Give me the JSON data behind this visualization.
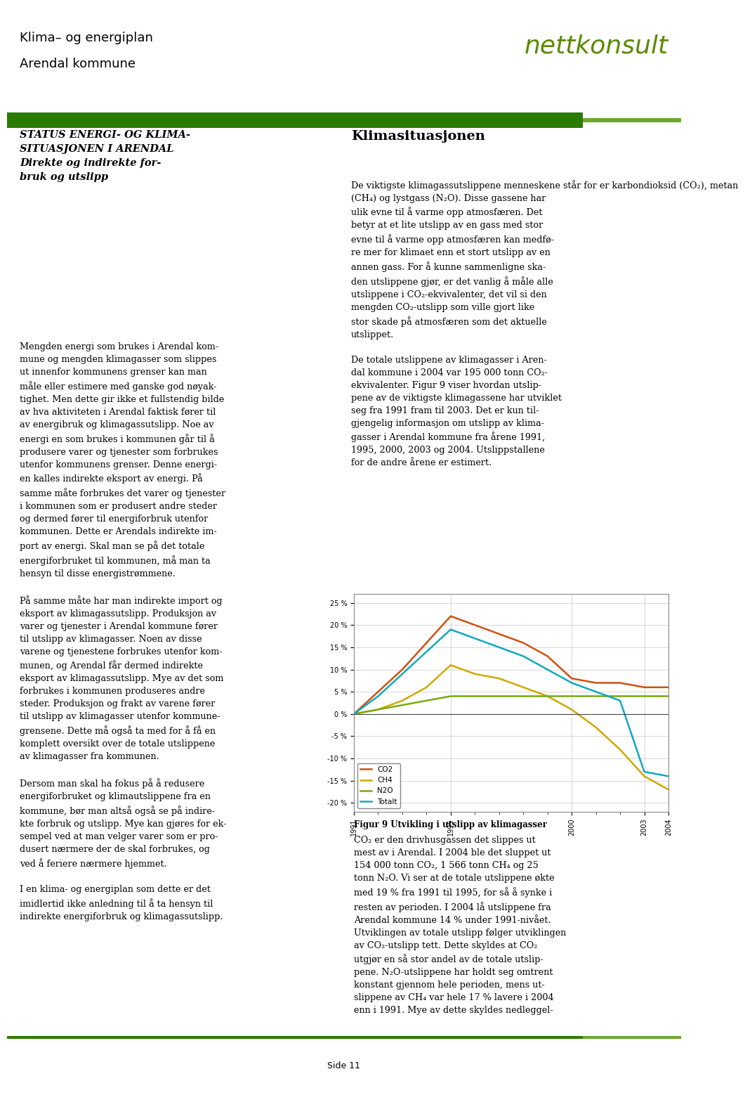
{
  "header_title_line1": "Klima– og energiplan",
  "header_title_line2": "Arendal kommune",
  "header_logo": "nettkonsult",
  "header_bar_dark": "#2a7a00",
  "header_bar_light": "#6aaa2a",
  "page_bg": "#ffffff",
  "left_heading": "STATUS ENERGI- OG KLIMA-\nSITUASJONEN I ARENDAL\nDirekte og indirekte for-\nbruk og utslipp",
  "left_body": "Mengden energi som brukes i Arendal kom-\nmune og mengden klimagasser som slippes\nut innenfor kommunens grenser kan man\nmåle eller estimere med ganske god nøyak-\ntighet. Men dette gir ikke et fullstendig bilde\nav hva aktiviteten i Arendal faktisk fører til\nav energibruk og klimagassutslipp. Noe av\nenergi en som brukes i kommunen går til å\nprodusere varer og tjenester som forbrukes\nutenfor kommunens grenser. Denne energi-\nen kalles indirekte eksport av energi. På\nsamme måte forbrukes det varer og tjenester\ni kommunen som er produsert andre steder\nog dermed fører til energiforbruk utenfor\nkommunen. Dette er Arendals indirekte im-\nport av energi. Skal man se på det totale\nenergiforbruket til kommunen, må man ta\nhensyn til disse energistrømmene.\n\nPå samme måte har man indirekte import og\neksport av klimagassutslipp. Produksjon av\nvarer og tjenester i Arendal kommune fører\ntil utslipp av klimagasser. Noen av disse\nvarene og tjenestene forbrukes utenfor kom-\nmunen, og Arendal får dermed indirekte\neksport av klimagassutslipp. Mye av det som\nforbrukes i kommunen produseres andre\nsteder. Produksjon og frakt av varene fører\ntil utslipp av klimagasser utenfor kommune-\ngrensene. Dette må også ta med for å få en\nkomplett oversikt over de totale utslippene\nav klimagasser fra kommunen.\n\nDersom man skal ha fokus på å redusere\nenergiforbruket og klimautslippene fra en\nkommune, bør man altså også se på indire-\nkte forbruk og utslipp. Mye kan gjøres for ek-\nsempel ved at man velger varer som er pro-\ndusert nærmere der de skal forbrukes, og\nved å feriere nærmere hjemmet.\n\nI en klima- og energiplan som dette er det\nimidlertid ikke anledning til å ta hensyn til\nindirekte energiforbruk og klimagassutslipp.",
  "right_heading": "Klimasituasjonen",
  "right_body1": "De viktigste klimagassutslippene menneskene står for er karbondioksid (CO₂), metan\n(CH₄) og lystgass (N₂O). Disse gassene har\nulik evne til å varme opp atmosfæren. Det\nbetyr at et lite utslipp av en gass med stor\nevne til å varme opp atmosfæren kan medfø-\nre mer for klimaet enn et stort utslipp av en\nannen gass. For å kunne sammenligne ska-\nden utslippene gjør, er det vanlig å måle alle\nutslippene i CO₂-ekvivalenter, det vil si den\nmengden CO₂-utslipp som ville gjort like\nstor skade på atmosfæren som det aktuelle\nutslippet.\n\nDe totale utslippene av klimagasser i Aren-\ndal kommune i 2004 var 195 000 tonn CO₂-\nekvivalenter. Figur 9 viser hvordan utslip-\npene av de viktigste klimagassene har utviklet\nseg fra 1991 fram til 2003. Det er kun til-\ngjengelig informasjon om utslipp av klima-\ngasser i Arendal kommune fra årene 1991,\n1995, 2000, 2003 og 2004. Utslippstallene\nfor de andre årene er estimert.",
  "chart_caption": "Figur 9 Utvikling i utslipp av klimagasser",
  "right_body2": "CO₂ er den drivhusgassen det slippes ut\nmest av i Arendal. I 2004 ble det sluppet ut\n154 000 tonn CO₂, 1 566 tonn CH₄ og 25\ntonn N₂O. Vi ser at de totale utslippene økte\nmed 19 % fra 1991 til 1995, for så å synke i\nresten av perioden. I 2004 lå utslippene fra\nArendal kommune 14 % under 1991-nivået.\nUtviklingen av totale utslipp følger utviklingen\nav CO₂-utslipp tett. Dette skyldes at CO₂\nutgjør en så stor andel av de totale utslip-\npene. N₂O-utslippene har holdt seg omtrent\nkonstant gjennom hele perioden, mens ut-\nslippene av CH₄ var hele 17 % lavere i 2004\nenn i 1991. Mye av dette skyldes nedleggel-",
  "chart": {
    "years": [
      1991,
      1992,
      1993,
      1994,
      1995,
      1996,
      1997,
      1998,
      1999,
      2000,
      2001,
      2002,
      2003,
      2004
    ],
    "CO2": [
      0,
      5,
      10,
      16,
      22,
      20,
      18,
      16,
      13,
      8,
      7,
      7,
      6,
      6
    ],
    "CH4": [
      0,
      1,
      3,
      6,
      11,
      9,
      8,
      6,
      4,
      1,
      -3,
      -8,
      -14,
      -17
    ],
    "N2O": [
      0,
      1,
      2,
      3,
      4,
      4,
      4,
      4,
      4,
      4,
      4,
      4,
      4,
      4
    ],
    "Totalt": [
      0,
      4,
      9,
      14,
      19,
      17,
      15,
      13,
      10,
      7,
      5,
      3,
      -13,
      -14
    ],
    "CO2_color": "#d05010",
    "CH4_color": "#d0a800",
    "N2O_color": "#7aaa10",
    "Totalt_color": "#10a8c0",
    "yticks": [
      -20,
      -15,
      -10,
      -5,
      0,
      5,
      10,
      15,
      20,
      25
    ],
    "ytick_labels": [
      "-20 %",
      "-15 %",
      "-10 %",
      "-5 %",
      "0 %",
      "5 %",
      "10 %",
      "15 %",
      "20 %",
      "25 %"
    ],
    "xtick_years": [
      1991,
      1995,
      2000,
      2003,
      2004
    ]
  },
  "footer_text": "Side 11",
  "footer_bar_dark": "#2a7a00",
  "footer_bar_light": "#6aaa2a"
}
